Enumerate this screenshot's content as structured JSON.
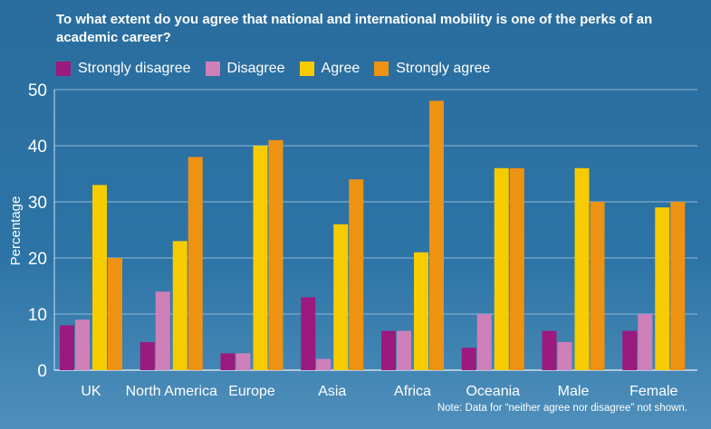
{
  "chart_data": {
    "type": "bar",
    "title": "To what extent do you agree that national and international mobility is one of the perks of an academic career?",
    "ylabel": "Percentage",
    "xlabel": "",
    "ylim": [
      0,
      50
    ],
    "yticks": [
      0,
      10,
      20,
      30,
      40,
      50
    ],
    "grid": true,
    "legend_position": "top-left",
    "categories": [
      "UK",
      "North America",
      "Europe",
      "Asia",
      "Africa",
      "Oceania",
      "Male",
      "Female"
    ],
    "series": [
      {
        "name": "Strongly disagree",
        "color": "#9b1a7e",
        "values": [
          8,
          5,
          3,
          13,
          7,
          4,
          7,
          7
        ]
      },
      {
        "name": "Disagree",
        "color": "#cf80b8",
        "values": [
          9,
          14,
          3,
          2,
          7,
          10,
          5,
          10
        ]
      },
      {
        "name": "Agree",
        "color": "#f6cc00",
        "values": [
          33,
          23,
          40,
          26,
          21,
          36,
          36,
          29
        ]
      },
      {
        "name": "Strongly agree",
        "color": "#ee9212",
        "values": [
          20,
          38,
          41,
          34,
          48,
          36,
          30,
          30
        ]
      }
    ],
    "note": "Note: Data for “neither agree nor disagree” not shown."
  }
}
